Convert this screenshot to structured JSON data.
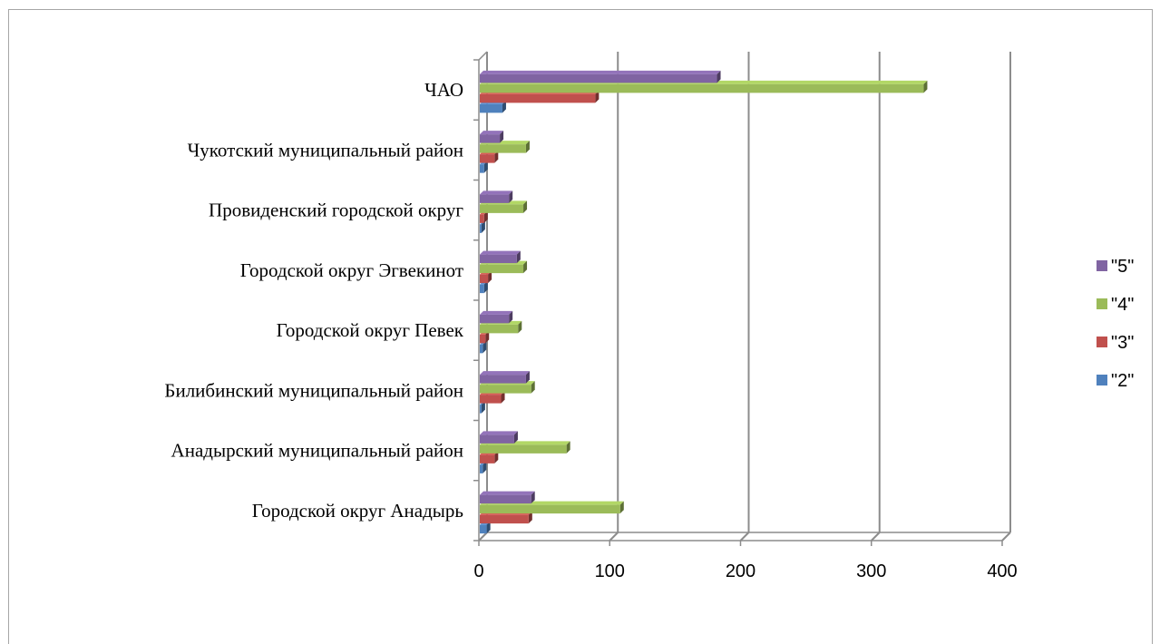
{
  "chart_data": {
    "type": "bar",
    "orientation": "horizontal",
    "categories": [
      "Городской округ Анадырь",
      "Анадырский муниципальный район",
      "Билибинский муниципальный район",
      "Городской округ Певек",
      "Городской округ Эгвекинот",
      "Провиденский городской округ",
      "Чукотский муниципальный район",
      "ЧАО"
    ],
    "series": [
      {
        "name": "\"2\"",
        "color": "#4f81bd",
        "values": [
          6,
          3,
          2,
          3,
          4,
          2,
          4,
          18
        ]
      },
      {
        "name": "\"3\"",
        "color": "#c0504d",
        "values": [
          38,
          12,
          17,
          5,
          7,
          4,
          12,
          89
        ]
      },
      {
        "name": "\"4\"",
        "color": "#9bbb59",
        "values": [
          108,
          67,
          40,
          30,
          34,
          34,
          36,
          340
        ]
      },
      {
        "name": "\"5\"",
        "color": "#8064a2",
        "values": [
          40,
          27,
          36,
          23,
          29,
          23,
          16,
          182
        ]
      }
    ],
    "legend_order": [
      "\"5\"",
      "\"4\"",
      "\"3\"",
      "\"2\""
    ],
    "xlim": [
      0,
      400
    ],
    "xticks": [
      "0",
      "100",
      "200",
      "300",
      "400"
    ],
    "grid": "vertical",
    "legend_position": "right",
    "title": "",
    "xlabel": "",
    "ylabel": ""
  }
}
